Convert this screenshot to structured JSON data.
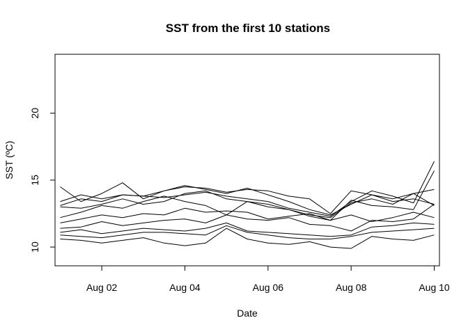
{
  "chart_data": {
    "type": "line",
    "title": "SST from the first 10 stations",
    "xlabel": "Date",
    "ylabel": "SST (ºC)",
    "x_start": "Aug 01",
    "x_end": "Aug 10",
    "xlim": [
      "Jul 31 21:00",
      "Aug 10 03:00"
    ],
    "ylim": [
      8.6,
      24.4
    ],
    "x_ticks": [
      {
        "value": 2,
        "label": "Aug 02"
      },
      {
        "value": 4,
        "label": "Aug 04"
      },
      {
        "value": 6,
        "label": "Aug 06"
      },
      {
        "value": 8,
        "label": "Aug 08"
      },
      {
        "value": 10,
        "label": "Aug 10"
      }
    ],
    "y_ticks": [
      {
        "value": 10,
        "label": "10"
      },
      {
        "value": 15,
        "label": "15"
      },
      {
        "value": 20,
        "label": "20"
      }
    ],
    "x_day": [
      1,
      1.5,
      2,
      2.5,
      3,
      3.5,
      4,
      4.5,
      5,
      5.5,
      6,
      6.5,
      7,
      7.5,
      8,
      8.5,
      9,
      9.5,
      10
    ],
    "series": [
      {
        "values": [
          14.5,
          13.4,
          14.0,
          14.8,
          13.6,
          14.2,
          14.6,
          14.3,
          14.0,
          14.4,
          13.9,
          13.4,
          12.8,
          12.4,
          13.2,
          13.9,
          13.6,
          14.0,
          14.3
        ]
      },
      {
        "values": [
          13.4,
          13.9,
          13.6,
          13.9,
          13.8,
          14.2,
          14.5,
          14.4,
          14.1,
          14.3,
          14.2,
          13.8,
          13.6,
          12.5,
          14.2,
          13.9,
          13.4,
          13.6,
          13.2
        ]
      },
      {
        "values": [
          13.1,
          13.6,
          13.4,
          13.9,
          13.8,
          13.7,
          13.9,
          14.1,
          13.8,
          13.6,
          13.4,
          12.9,
          12.6,
          12.3,
          13.4,
          14.2,
          13.8,
          13.3,
          16.4
        ]
      },
      {
        "values": [
          13.0,
          12.9,
          13.2,
          13.6,
          13.2,
          13.4,
          14.0,
          14.2,
          13.6,
          13.4,
          13.2,
          12.8,
          12.4,
          12.2,
          13.3,
          13.6,
          13.2,
          14.0,
          13.1
        ]
      },
      {
        "values": [
          12.2,
          12.6,
          13.1,
          12.9,
          13.4,
          13.8,
          13.4,
          13.1,
          12.4,
          13.4,
          13.0,
          12.8,
          12.3,
          12.0,
          13.5,
          13.1,
          13.0,
          12.8,
          15.7
        ]
      },
      {
        "values": [
          11.8,
          12.1,
          12.4,
          12.2,
          12.5,
          12.4,
          12.9,
          12.6,
          12.7,
          12.6,
          12.1,
          12.3,
          12.5,
          12.0,
          12.4,
          11.9,
          12.2,
          12.6,
          12.2
        ]
      },
      {
        "values": [
          11.4,
          11.5,
          11.9,
          11.6,
          11.8,
          12.0,
          12.1,
          11.8,
          12.4,
          12.1,
          12.0,
          12.2,
          11.7,
          11.6,
          11.2,
          12.0,
          11.9,
          12.1,
          13.2
        ]
      },
      {
        "values": [
          11.1,
          11.3,
          11.0,
          11.2,
          11.4,
          11.3,
          11.2,
          11.4,
          11.8,
          11.2,
          11.1,
          11.0,
          10.9,
          10.8,
          10.9,
          11.5,
          11.6,
          11.8,
          11.7
        ]
      },
      {
        "values": [
          10.9,
          10.8,
          10.7,
          10.9,
          11.1,
          11.1,
          11.0,
          10.9,
          11.6,
          11.1,
          10.9,
          10.7,
          10.6,
          10.6,
          10.8,
          11.1,
          11.2,
          11.3,
          11.4
        ]
      },
      {
        "values": [
          10.6,
          10.5,
          10.3,
          10.5,
          10.7,
          10.3,
          10.1,
          10.3,
          11.4,
          10.6,
          10.3,
          10.2,
          10.4,
          10.0,
          9.9,
          10.8,
          10.6,
          10.5,
          10.9
        ]
      }
    ]
  }
}
